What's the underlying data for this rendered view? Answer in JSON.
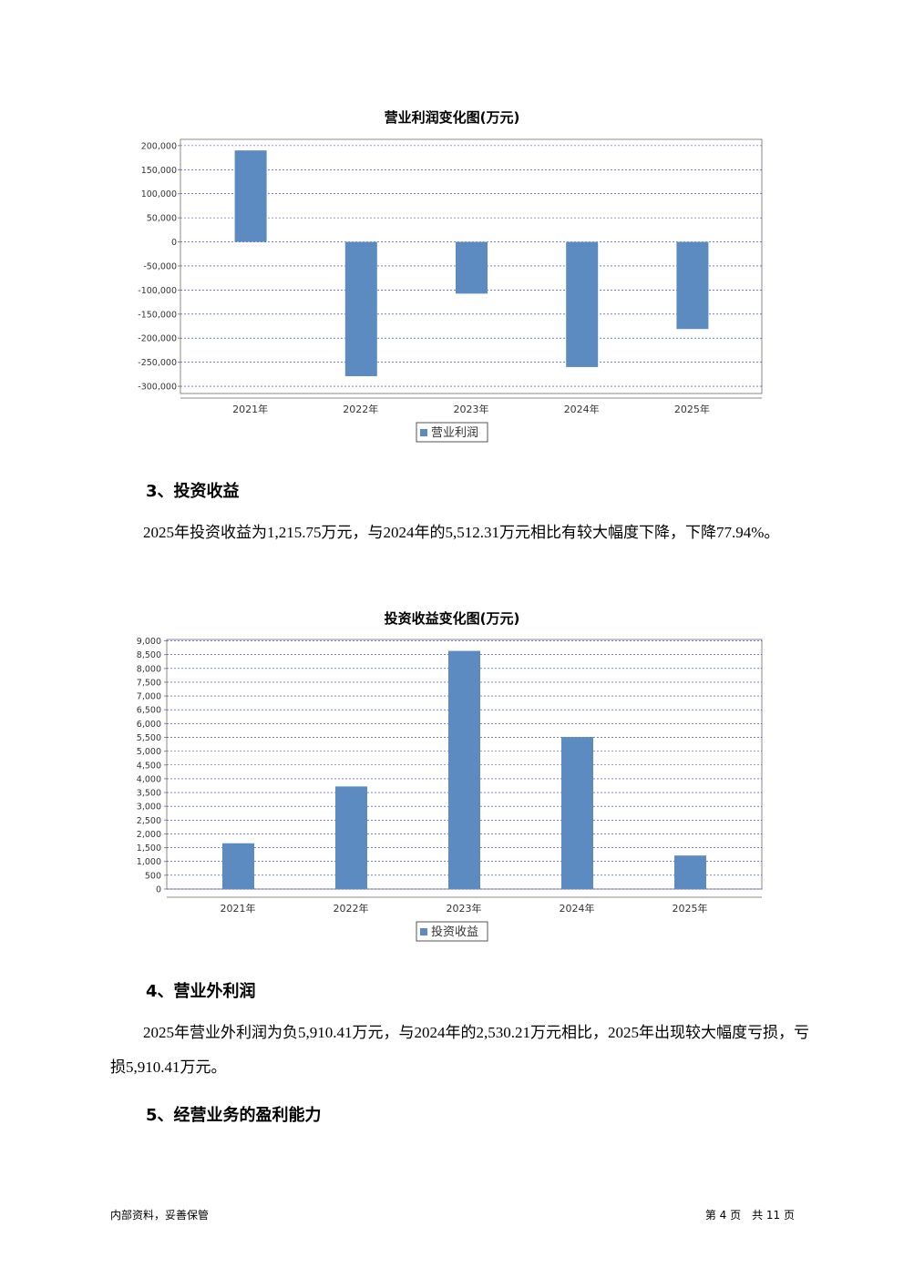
{
  "charts": [
    {
      "type": "bar",
      "title": "营业利润变化图(万元)",
      "categories": [
        "2021年",
        "2022年",
        "2023年",
        "2024年",
        "2025年"
      ],
      "series": [
        {
          "name": "营业利润",
          "color": "#5b8bc0",
          "values": [
            190000,
            -279000,
            -107500,
            -260000,
            -181000
          ]
        }
      ],
      "ylim": [
        -315000,
        213000
      ],
      "yticks": [
        {
          "value": 200000,
          "label": "200,000"
        },
        {
          "value": 150000,
          "label": "150,000"
        },
        {
          "value": 100000,
          "label": "100,000"
        },
        {
          "value": 50000,
          "label": "50,000"
        },
        0,
        {
          "value": -50000,
          "label": "-50,000"
        },
        {
          "value": -100000,
          "label": "-100,000"
        },
        {
          "value": -150000,
          "label": "-150,000"
        },
        {
          "value": -200000,
          "label": "-200,000"
        },
        {
          "value": -250000,
          "label": "-250,000"
        },
        {
          "value": -300000,
          "label": "-300,000"
        }
      ],
      "grid": true
    },
    {
      "type": "bar",
      "title": "投资收益变化图(万元)",
      "categories": [
        "2021年",
        "2022年",
        "2023年",
        "2024年",
        "2025年"
      ],
      "series": [
        {
          "name": "投资收益",
          "color": "#5b8bc0",
          "values": [
            1660,
            3720,
            8635,
            5512.31,
            1215.75
          ]
        }
      ],
      "ylim": [
        0,
        9050
      ],
      "yticks": [
        {
          "value": 9000,
          "label": "9,000"
        },
        {
          "value": 8500,
          "label": "8,500"
        },
        {
          "value": 8000,
          "label": "8,000"
        },
        {
          "value": 7500,
          "label": "7,500"
        },
        {
          "value": 7000,
          "label": "7,000"
        },
        {
          "value": 6500,
          "label": "6,500"
        },
        {
          "value": 6000,
          "label": "6,000"
        },
        {
          "value": 5500,
          "label": "5,500"
        },
        {
          "value": 5000,
          "label": "5,000"
        },
        {
          "value": 4500,
          "label": "4,500"
        },
        {
          "value": 4000,
          "label": "4,000"
        },
        {
          "value": 3500,
          "label": "3,500"
        },
        {
          "value": 3000,
          "label": "3,000"
        },
        {
          "value": 2500,
          "label": "2,500"
        },
        {
          "value": 2000,
          "label": "2,000"
        },
        {
          "value": 1500,
          "label": "1,500"
        },
        {
          "value": 1000,
          "label": "1,000"
        },
        500,
        0
      ],
      "grid": true
    }
  ],
  "sections": [
    {
      "heading": "3、投资收益",
      "paragraph": "2025年投资收益为1,215.75万元，与2024年的5,512.31万元相比有较大幅度下降，下降77.94%。"
    },
    {
      "heading": "4、营业外利润",
      "paragraph": "2025年营业外利润为负5,910.41万元，与2024年的2,530.21万元相比，2025年出现较大幅度亏损，亏损5,910.41万元。"
    },
    {
      "heading": "5、经营业务的盈利能力"
    }
  ],
  "footer": {
    "left": "内部资料，妥善保管",
    "right": "第 4 页　共 11 页"
  }
}
